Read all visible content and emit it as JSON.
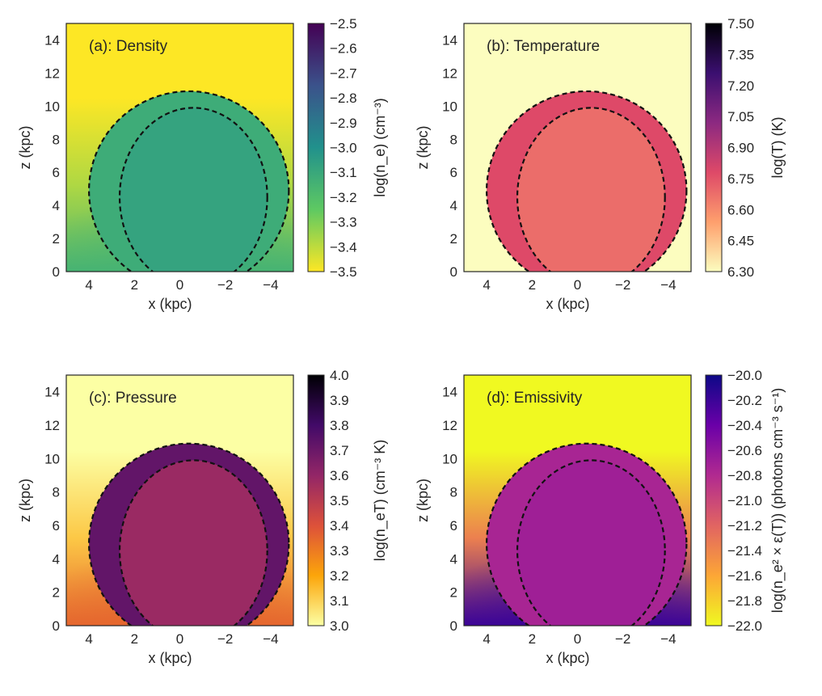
{
  "chart_data": [
    {
      "type": "heatmap",
      "title": "(a): Density",
      "xlabel": "x (kpc)",
      "ylabel": "z (kpc)",
      "xlim": [
        5,
        -5
      ],
      "ylim": [
        0,
        15
      ],
      "xticks": [
        "4",
        "2",
        "0",
        "−2",
        "−4"
      ],
      "yticks": [
        "0",
        "2",
        "4",
        "6",
        "8",
        "10",
        "12",
        "14"
      ],
      "colorbar": {
        "label": "log(n_e) (cm⁻³)",
        "range": [
          -3.5,
          -2.5
        ],
        "ticks": [
          "−2.5",
          "−2.6",
          "−2.7",
          "−2.8",
          "−2.9",
          "−3.0",
          "−3.1",
          "−3.2",
          "−3.3",
          "−3.4",
          "−3.5"
        ],
        "colormap": [
          "#440154",
          "#3b528b",
          "#21918c",
          "#5ec962",
          "#fde725"
        ]
      },
      "regions": {
        "ambient_top": -3.5,
        "ambient_bottom": -3.15,
        "shell": -3.12,
        "cavity": -3.08
      }
    },
    {
      "type": "heatmap",
      "title": "(b): Temperature",
      "xlabel": "x (kpc)",
      "ylabel": "z (kpc)",
      "xlim": [
        5,
        -5
      ],
      "ylim": [
        0,
        15
      ],
      "xticks": [
        "4",
        "2",
        "0",
        "−2",
        "−4"
      ],
      "yticks": [
        "0",
        "2",
        "4",
        "6",
        "8",
        "10",
        "12",
        "14"
      ],
      "colorbar": {
        "label": "log(T) (K)",
        "range": [
          6.3,
          7.5
        ],
        "ticks": [
          "7.50",
          "7.35",
          "7.20",
          "7.05",
          "6.90",
          "6.75",
          "6.60",
          "6.45",
          "6.30"
        ],
        "colormap": [
          "#000004",
          "#3b0f70",
          "#8c2981",
          "#de4968",
          "#fe9f6d",
          "#fcfdbf"
        ]
      },
      "regions": {
        "ambient": 6.3,
        "shell": 6.78,
        "cavity": 6.68
      }
    },
    {
      "type": "heatmap",
      "title": "(c): Pressure",
      "xlabel": "x (kpc)",
      "ylabel": "z (kpc)",
      "xlim": [
        5,
        -5
      ],
      "ylim": [
        0,
        15
      ],
      "xticks": [
        "4",
        "2",
        "0",
        "−2",
        "−4"
      ],
      "yticks": [
        "0",
        "2",
        "4",
        "6",
        "8",
        "10",
        "12",
        "14"
      ],
      "colorbar": {
        "label": "log(n_eT) (cm⁻³ K)",
        "range": [
          3.0,
          4.0
        ],
        "ticks": [
          "4.0",
          "3.9",
          "3.8",
          "3.7",
          "3.6",
          "3.5",
          "3.4",
          "3.3",
          "3.2",
          "3.1",
          "3.0"
        ],
        "colormap": [
          "#000004",
          "#420a68",
          "#932667",
          "#dd513a",
          "#fca50a",
          "#fcffa4"
        ]
      },
      "regions": {
        "ambient_top": 3.0,
        "ambient_bottom": 3.35,
        "shell": 3.72,
        "cavity": 3.58
      }
    },
    {
      "type": "heatmap",
      "title": "(d): Emissivity",
      "xlabel": "x (kpc)",
      "ylabel": "z (kpc)",
      "xlim": [
        5,
        -5
      ],
      "ylim": [
        0,
        15
      ],
      "xticks": [
        "4",
        "2",
        "0",
        "−2",
        "−4"
      ],
      "yticks": [
        "0",
        "2",
        "4",
        "6",
        "8",
        "10",
        "12",
        "14"
      ],
      "colorbar": {
        "label": "log(n_e² × ε(T)) (photons cm⁻³ s⁻¹)",
        "range": [
          -22.0,
          -20.0
        ],
        "ticks": [
          "−20.0",
          "−20.2",
          "−20.4",
          "−20.6",
          "−20.8",
          "−21.0",
          "−21.2",
          "−21.4",
          "−21.6",
          "−21.8",
          "−22.0"
        ],
        "colormap": [
          "#0d0887",
          "#6a00a8",
          "#b12a90",
          "#e16462",
          "#fca636",
          "#f0f921"
        ]
      },
      "regions": {
        "ambient_top": -22.0,
        "ambient_bottom": -20.2,
        "shell": -20.75,
        "cavity": -20.7
      }
    }
  ]
}
